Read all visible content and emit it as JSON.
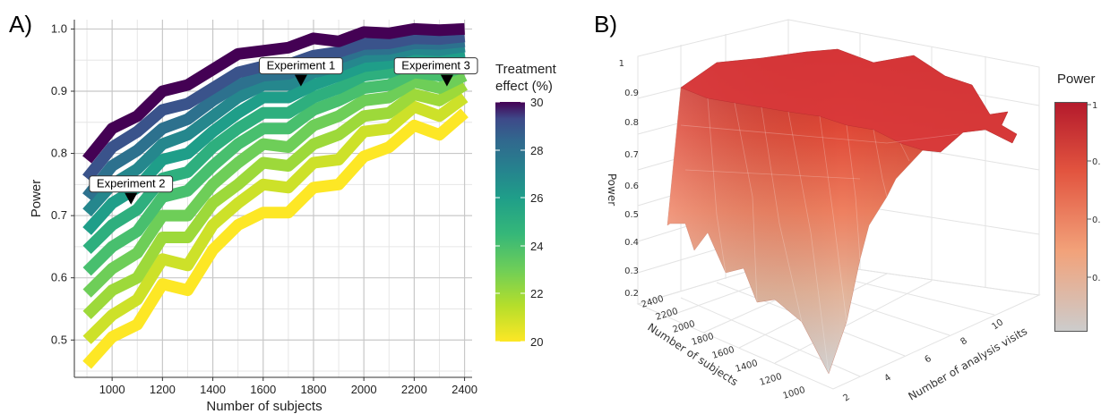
{
  "panel_a": {
    "label": "A)",
    "legend_title_line1": "Treatment",
    "legend_title_line2": "effect (%)",
    "legend_ticks": [
      "30",
      "28",
      "26",
      "24",
      "22",
      "20"
    ]
  },
  "panel_b": {
    "label": "B)",
    "legend_title": "Power",
    "legend_ticks": [
      "1",
      "0.",
      "0.",
      "0."
    ],
    "z_axis_title": "Power",
    "x_axis_title": "Number of subjects",
    "y_axis_title": "Number of analysis visits",
    "z_ticks": [
      "1",
      "0.9",
      "0.8",
      "0.7",
      "0.6",
      "0.5",
      "0.4",
      "0.3",
      "0.2"
    ],
    "x_ticks": [
      "2400",
      "2200",
      "2000",
      "1800",
      "1600",
      "1400",
      "1200",
      "1000"
    ],
    "y_ticks": [
      "2",
      "4",
      "6",
      "8",
      "10"
    ]
  },
  "chart_data": [
    {
      "type": "line",
      "title": "",
      "xlabel": "Number of subjects",
      "ylabel": "Power",
      "xlim": [
        850,
        2430
      ],
      "ylim": [
        0.44,
        1.015
      ],
      "xticks": [
        1000,
        1200,
        1400,
        1600,
        1800,
        2000,
        2200,
        2400
      ],
      "yticks": [
        0.5,
        0.6,
        0.7,
        0.8,
        0.9,
        1.0
      ],
      "grid": true,
      "color_scale": "viridis",
      "color_range": [
        20,
        30
      ],
      "legend_position": "right",
      "x": [
        900,
        1000,
        1100,
        1200,
        1300,
        1400,
        1500,
        1600,
        1700,
        1800,
        1900,
        2000,
        2100,
        2200,
        2300,
        2400
      ],
      "series": [
        {
          "effect": 20,
          "values": [
            0.46,
            0.505,
            0.525,
            0.59,
            0.58,
            0.645,
            0.685,
            0.705,
            0.705,
            0.745,
            0.75,
            0.795,
            0.81,
            0.845,
            0.83,
            0.865
          ]
        },
        {
          "effect": 21,
          "values": [
            0.5,
            0.54,
            0.565,
            0.63,
            0.62,
            0.685,
            0.72,
            0.75,
            0.745,
            0.785,
            0.79,
            0.835,
            0.84,
            0.875,
            0.86,
            0.89
          ]
        },
        {
          "effect": 22,
          "values": [
            0.54,
            0.58,
            0.6,
            0.665,
            0.665,
            0.72,
            0.75,
            0.785,
            0.78,
            0.815,
            0.83,
            0.86,
            0.865,
            0.895,
            0.885,
            0.91
          ]
        },
        {
          "effect": 23,
          "values": [
            0.575,
            0.615,
            0.64,
            0.7,
            0.7,
            0.75,
            0.785,
            0.815,
            0.81,
            0.845,
            0.86,
            0.885,
            0.89,
            0.915,
            0.905,
            0.925
          ]
        },
        {
          "effect": 24,
          "values": [
            0.61,
            0.65,
            0.675,
            0.73,
            0.74,
            0.78,
            0.815,
            0.84,
            0.84,
            0.87,
            0.885,
            0.905,
            0.91,
            0.93,
            0.925,
            0.94
          ]
        },
        {
          "effect": 25,
          "values": [
            0.645,
            0.685,
            0.71,
            0.76,
            0.77,
            0.81,
            0.84,
            0.865,
            0.865,
            0.89,
            0.905,
            0.925,
            0.93,
            0.945,
            0.94,
            0.952
          ]
        },
        {
          "effect": 26,
          "values": [
            0.675,
            0.72,
            0.745,
            0.79,
            0.8,
            0.835,
            0.865,
            0.89,
            0.89,
            0.91,
            0.925,
            0.94,
            0.945,
            0.958,
            0.955,
            0.962
          ]
        },
        {
          "effect": 27,
          "values": [
            0.705,
            0.75,
            0.775,
            0.815,
            0.83,
            0.86,
            0.89,
            0.91,
            0.91,
            0.93,
            0.94,
            0.955,
            0.958,
            0.968,
            0.966,
            0.972
          ]
        },
        {
          "effect": 28,
          "values": [
            0.73,
            0.78,
            0.805,
            0.84,
            0.855,
            0.885,
            0.91,
            0.925,
            0.928,
            0.945,
            0.953,
            0.967,
            0.968,
            0.977,
            0.976,
            0.98
          ]
        },
        {
          "effect": 29,
          "values": [
            0.76,
            0.81,
            0.835,
            0.87,
            0.88,
            0.905,
            0.93,
            0.94,
            0.943,
            0.957,
            0.963,
            0.976,
            0.977,
            0.985,
            0.984,
            0.988
          ]
        },
        {
          "effect": 30,
          "values": [
            0.79,
            0.84,
            0.86,
            0.9,
            0.91,
            0.935,
            0.96,
            0.965,
            0.97,
            0.985,
            0.98,
            0.995,
            0.993,
            1.0,
            0.998,
            1.0
          ]
        }
      ],
      "annotations": [
        {
          "label": "Experiment 1",
          "x": 1750,
          "y": 0.915
        },
        {
          "label": "Experiment 2",
          "x": 1075,
          "y": 0.725
        },
        {
          "label": "Experiment 3",
          "x": 2330,
          "y": 0.915
        }
      ]
    },
    {
      "type": "surface",
      "zlabel": "Power",
      "xlabel": "Number of subjects",
      "ylabel": "Number of analysis visits",
      "zlim": [
        0.2,
        1
      ],
      "color_scale": [
        "#cccccc",
        "#f2a27a",
        "#e2543f",
        "#b41a2c"
      ],
      "legend_position": "right"
    }
  ]
}
